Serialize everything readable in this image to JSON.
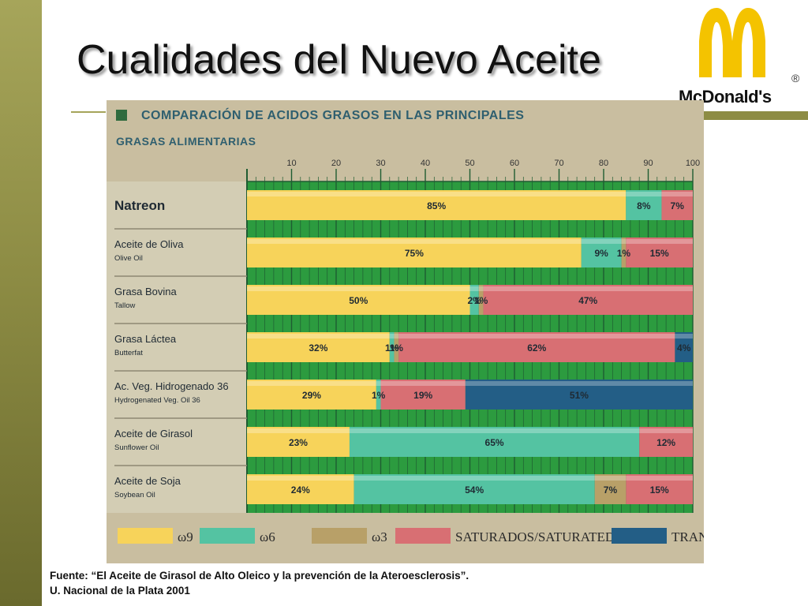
{
  "slide": {
    "title": "Cualidades del Nuevo Aceite",
    "brand": "McDonald's",
    "source_line1": "Fuente: “El Aceite de Girasol de Alto Oleico y la prevención de la Ateroesclerosis”.",
    "source_line2": "U. Nacional de la Plata 2001"
  },
  "chart_data": {
    "type": "bar",
    "orientation": "horizontal",
    "stacked": true,
    "title": "COMPARACIÓN DE ACIDOS GRASOS EN LAS PRINCIPALES",
    "subtitle": "GRASAS ALIMENTARIAS",
    "xlim": [
      0,
      100
    ],
    "xticks": [
      "10",
      "20",
      "30",
      "40",
      "50",
      "60",
      "70",
      "80",
      "90",
      "100"
    ],
    "grid": true,
    "legend_position": "bottom",
    "categories": [
      {
        "name": "Natreon",
        "sub": ""
      },
      {
        "name": "Aceite de Oliva",
        "sub": "Olive Oil"
      },
      {
        "name": "Grasa Bovina",
        "sub": "Tallow"
      },
      {
        "name": "Grasa Láctea",
        "sub": "Butterfat"
      },
      {
        "name": "Ac. Veg. Hidrogenado 36",
        "sub": "Hydrogenated Veg. Oil 36"
      },
      {
        "name": "Aceite de Girasol",
        "sub": "Sunflower Oil"
      },
      {
        "name": "Aceite de Soja",
        "sub": "Soybean Oil"
      }
    ],
    "series": [
      {
        "name": "ω9",
        "color": "#f7d35a",
        "values": [
          85,
          75,
          50,
          32,
          29,
          23,
          24
        ],
        "labels": [
          "85%",
          "75%",
          "50%",
          "32%",
          "29%",
          "23%",
          "24%"
        ]
      },
      {
        "name": "ω6",
        "color": "#54c3a2",
        "values": [
          8,
          9,
          2,
          1,
          1,
          65,
          54
        ],
        "labels": [
          "8%",
          "9%",
          "2%",
          "1%",
          "1%",
          "65%",
          "54%"
        ]
      },
      {
        "name": "ω3",
        "color": "#b8a068",
        "values": [
          0,
          1,
          1,
          1,
          0,
          0,
          7
        ],
        "labels": [
          "",
          "1%",
          "1%",
          "1%",
          "",
          "",
          "7%"
        ]
      },
      {
        "name": "SATURADOS/SATURATED",
        "color": "#d86f73",
        "values": [
          7,
          15,
          47,
          62,
          19,
          12,
          15
        ],
        "labels": [
          "7%",
          "15%",
          "47%",
          "62%",
          "19%",
          "12%",
          "15%"
        ]
      },
      {
        "name": "TRANS",
        "color": "#235e86",
        "values": [
          0,
          0,
          0,
          4,
          51,
          0,
          0
        ],
        "labels": [
          "",
          "",
          "",
          "4%",
          "51%",
          "",
          ""
        ]
      }
    ]
  }
}
